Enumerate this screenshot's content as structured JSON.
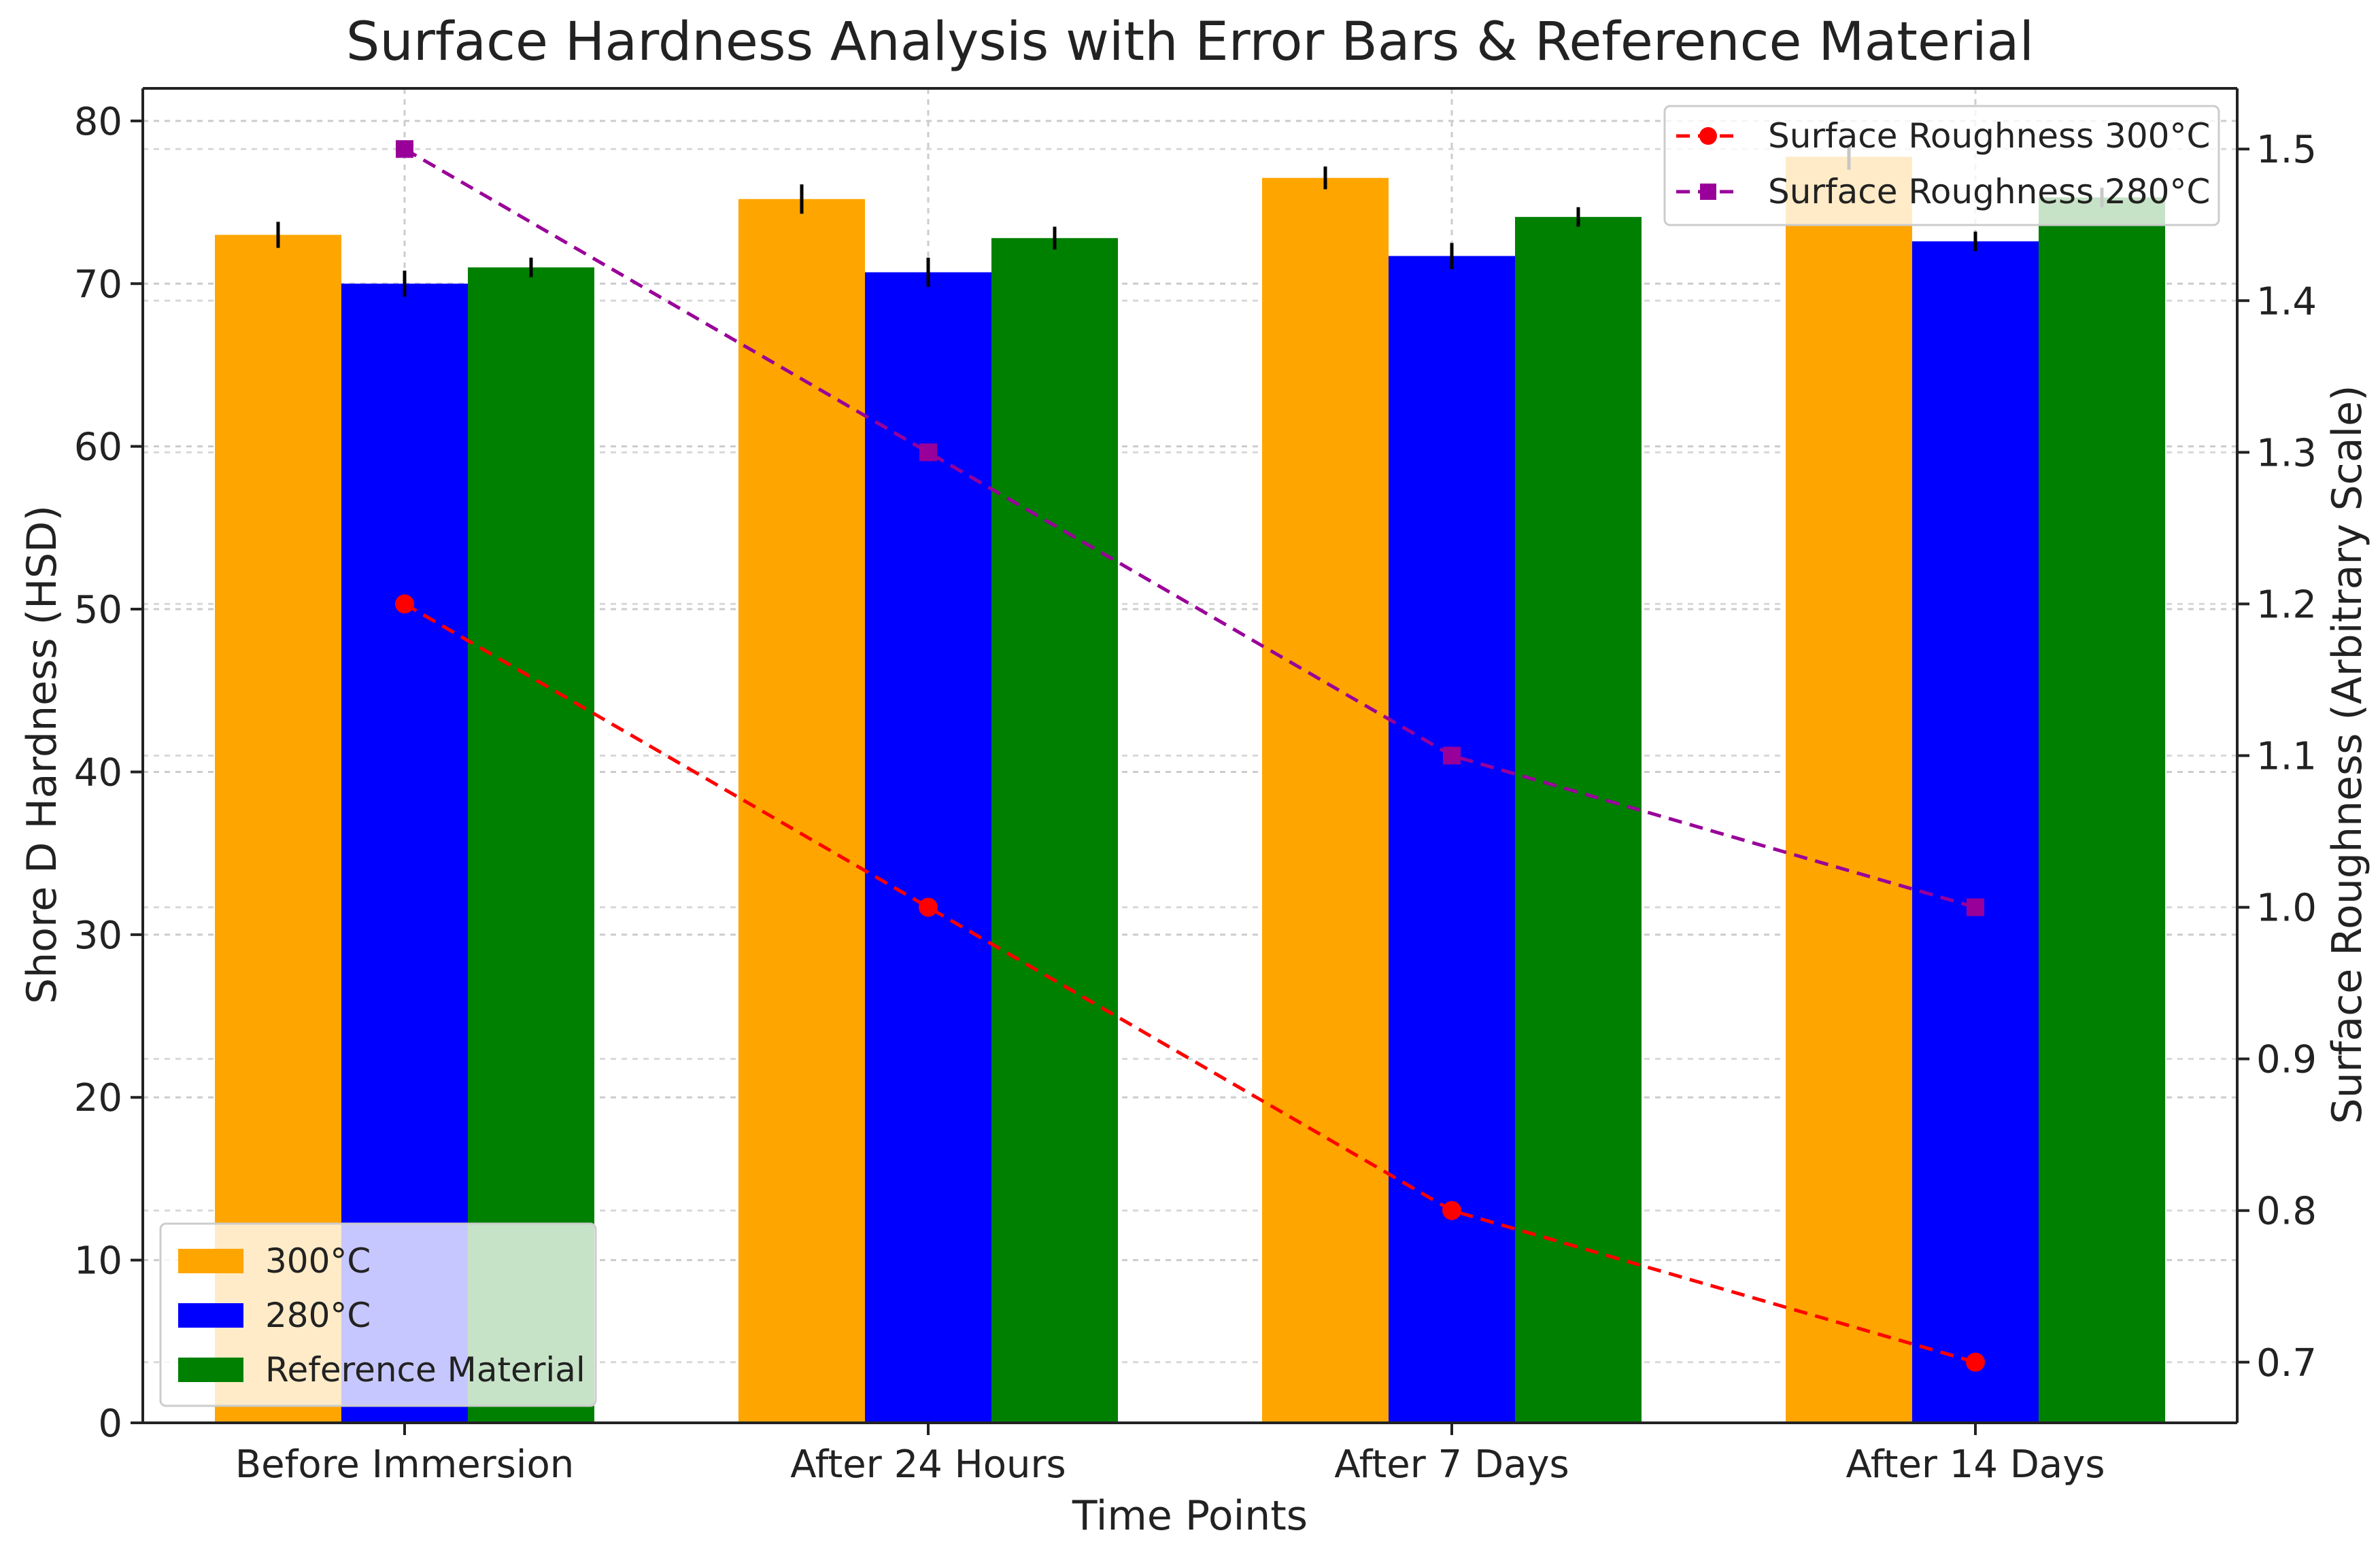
{
  "chart_data": {
    "type": "bar",
    "title": "Surface Hardness Analysis with Error Bars & Reference Material",
    "xlabel": "Time Points",
    "ylabel": "Shore D Hardness (HSD)",
    "y2label": "Surface Roughness (Arbitrary Scale)",
    "categories": [
      "Before Immersion",
      "After 24 Hours",
      "After 7 Days",
      "After 14 Days"
    ],
    "ylim": [
      0,
      82
    ],
    "yticks": [
      0,
      10,
      20,
      30,
      40,
      50,
      60,
      70,
      80
    ],
    "y2lim": [
      0.66,
      1.54
    ],
    "y2ticks": [
      "0.7",
      "0.8",
      "0.9",
      "1.0",
      "1.1",
      "1.2",
      "1.3",
      "1.4",
      "1.5"
    ],
    "series": [
      {
        "name": "300°C",
        "values": [
          73,
          75.2,
          76.5,
          77.8
        ],
        "errors": [
          0.8,
          0.9,
          0.7,
          0.8
        ],
        "color": "#FFA500"
      },
      {
        "name": "280°C",
        "values": [
          70,
          70.7,
          71.7,
          72.6
        ],
        "errors": [
          0.8,
          0.9,
          0.8,
          0.6
        ],
        "color": "#0000FF"
      },
      {
        "name": "Reference Material",
        "values": [
          71,
          72.8,
          74.1,
          75.3
        ],
        "errors": [
          0.6,
          0.7,
          0.6,
          0.6
        ],
        "color": "#008000"
      }
    ],
    "lines": [
      {
        "name": "Surface Roughness 300°C",
        "values": [
          1.2,
          1.0,
          0.8,
          0.7
        ],
        "color": "#FF0000",
        "marker": "circle",
        "style": "dashed"
      },
      {
        "name": "Surface Roughness 280°C",
        "values": [
          1.5,
          1.3,
          1.1,
          1.0
        ],
        "color": "#990099",
        "marker": "square",
        "style": "dashed"
      }
    ],
    "grid": true,
    "legend_bars": "bottom-left",
    "legend_lines": "top-right"
  }
}
